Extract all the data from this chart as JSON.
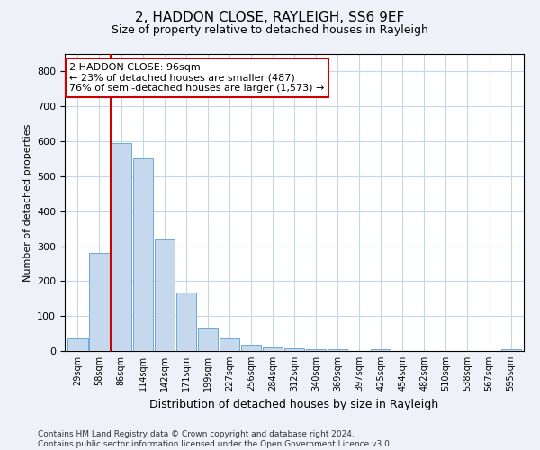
{
  "title": "2, HADDON CLOSE, RAYLEIGH, SS6 9EF",
  "subtitle": "Size of property relative to detached houses in Rayleigh",
  "xlabel": "Distribution of detached houses by size in Rayleigh",
  "ylabel": "Number of detached properties",
  "categories": [
    "29sqm",
    "58sqm",
    "86sqm",
    "114sqm",
    "142sqm",
    "171sqm",
    "199sqm",
    "227sqm",
    "256sqm",
    "284sqm",
    "312sqm",
    "340sqm",
    "369sqm",
    "397sqm",
    "425sqm",
    "454sqm",
    "482sqm",
    "510sqm",
    "538sqm",
    "567sqm",
    "595sqm"
  ],
  "values": [
    35,
    280,
    595,
    550,
    320,
    168,
    68,
    35,
    18,
    10,
    8,
    6,
    6,
    0,
    5,
    0,
    0,
    0,
    0,
    0,
    5
  ],
  "bar_color": "#c5d8ee",
  "bar_edge_color": "#6aaad4",
  "vline_color": "#cc0000",
  "annotation_text": "2 HADDON CLOSE: 96sqm\n← 23% of detached houses are smaller (487)\n76% of semi-detached houses are larger (1,573) →",
  "annotation_box_color": "#ffffff",
  "annotation_box_edge": "#cc0000",
  "ylim": [
    0,
    850
  ],
  "yticks": [
    0,
    100,
    200,
    300,
    400,
    500,
    600,
    700,
    800
  ],
  "footer": "Contains HM Land Registry data © Crown copyright and database right 2024.\nContains public sector information licensed under the Open Government Licence v3.0.",
  "background_color": "#eef2f8",
  "plot_bg_color": "#ffffff",
  "grid_color": "#c8d4e8",
  "title_fontsize": 11,
  "subtitle_fontsize": 9,
  "footer_fontsize": 6.5
}
